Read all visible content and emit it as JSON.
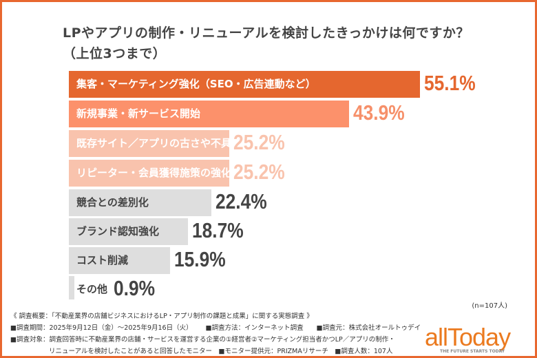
{
  "title_line1": "LPやアプリの制作・リニューアルを検討したきっかけは何ですか？",
  "title_line2": "（上位3つまで）",
  "chart_data": {
    "type": "bar",
    "orientation": "horizontal",
    "title": "LPやアプリの制作・リニューアルを検討したきっかけは何ですか？（上位3つまで）",
    "categories": [
      "集客・マーケティング強化（SEO・広告連動など）",
      "新規事業・新サービス開始",
      "既存サイト／アプリの古さや不具合",
      "リピーター・会員獲得施策の強化",
      "競合との差別化",
      "ブランド認知強化",
      "コスト削減",
      "その他"
    ],
    "values": [
      55.1,
      43.9,
      25.2,
      25.2,
      22.4,
      18.7,
      15.9,
      0.9
    ],
    "value_labels": [
      "55.1%",
      "43.9%",
      "25.2%",
      "25.2%",
      "22.4%",
      "18.7%",
      "15.9%",
      "0.9%"
    ],
    "bar_colors": [
      "#e5672f",
      "#fc916b",
      "#f9c3ad",
      "#f9c3ad",
      "#dedede",
      "#dedede",
      "#dedede",
      "#dedede"
    ],
    "value_colors": [
      "#e5672f",
      "#f6906a",
      "#f9c3ad",
      "#f9c3ad",
      "#444444",
      "#444444",
      "#444444",
      "#444444"
    ],
    "label_colors": [
      "#ffffff",
      "#ffffff",
      "#ffffff",
      "#ffffff",
      "#444444",
      "#444444",
      "#444444",
      "#444444"
    ]
  },
  "n_label": "(n=107人)",
  "notes": {
    "overview": "《 調査概要：「不動産業界の店舗ビジネスにおけるLP・アプリ制作の課題と成果」に関する実態調査 》",
    "period": "■調査期間：2025年9月12日（金）〜2025年9月16日（火）",
    "method": "■調査方法：インターネット調査",
    "source": "■調査元：株式会社オールトゥデイ",
    "target1": "■調査対象：調査回答時に不動産業界の店舗・サービスを運営する企業の①経営者②マーケティング担当者かつLP／アプリの制作・",
    "target2": "リニューアルを検討したことがあると回答したモニター",
    "provider": "■モニター提供元：PRIZMAリサーチ",
    "count": "■調査人数：107人"
  },
  "logo": {
    "text": "allToday",
    "tagline": "THE FUTURE STARTS TODAY"
  }
}
